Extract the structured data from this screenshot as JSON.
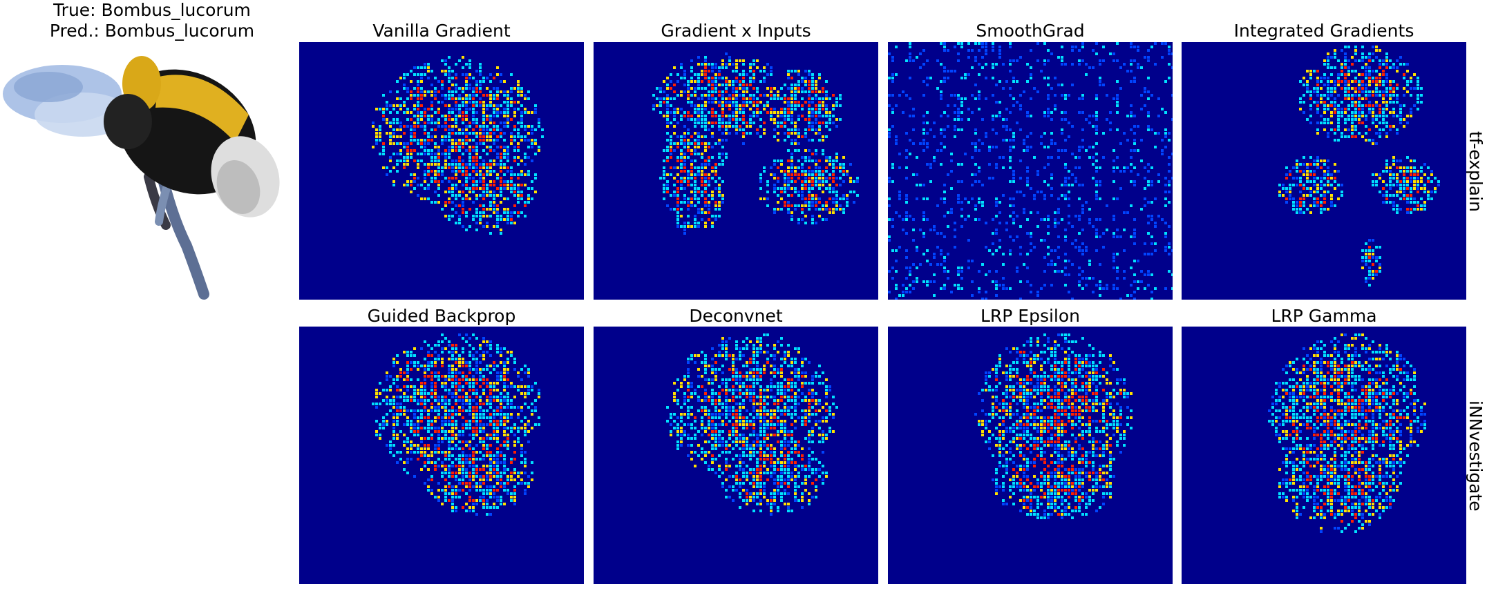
{
  "header": {
    "true_label": "True: Bombus_lucorum",
    "pred_label": "Pred.: Bombus_lucorum"
  },
  "rows": [
    {
      "group": "tf-explain",
      "methods": [
        "Vanilla Gradient",
        "Gradient x Inputs",
        "SmoothGrad",
        "Integrated Gradients"
      ]
    },
    {
      "group": "iNNvestigate",
      "methods": [
        "Guided Backprop",
        "Deconvnet",
        "LRP Epsilon",
        "LRP Gamma"
      ]
    }
  ],
  "colors": {
    "heatmap_background": "#00008b",
    "heat_low": "#0044ff",
    "heat_mid": "#00e0ff",
    "heat_warm": "#ffe000",
    "heat_hot": "#ff2000",
    "bee_body": "#1a1a1a",
    "bee_yellow": "#e0b020",
    "bee_tail": "#e8e8e8",
    "bee_wing": "#9fb8e0"
  }
}
